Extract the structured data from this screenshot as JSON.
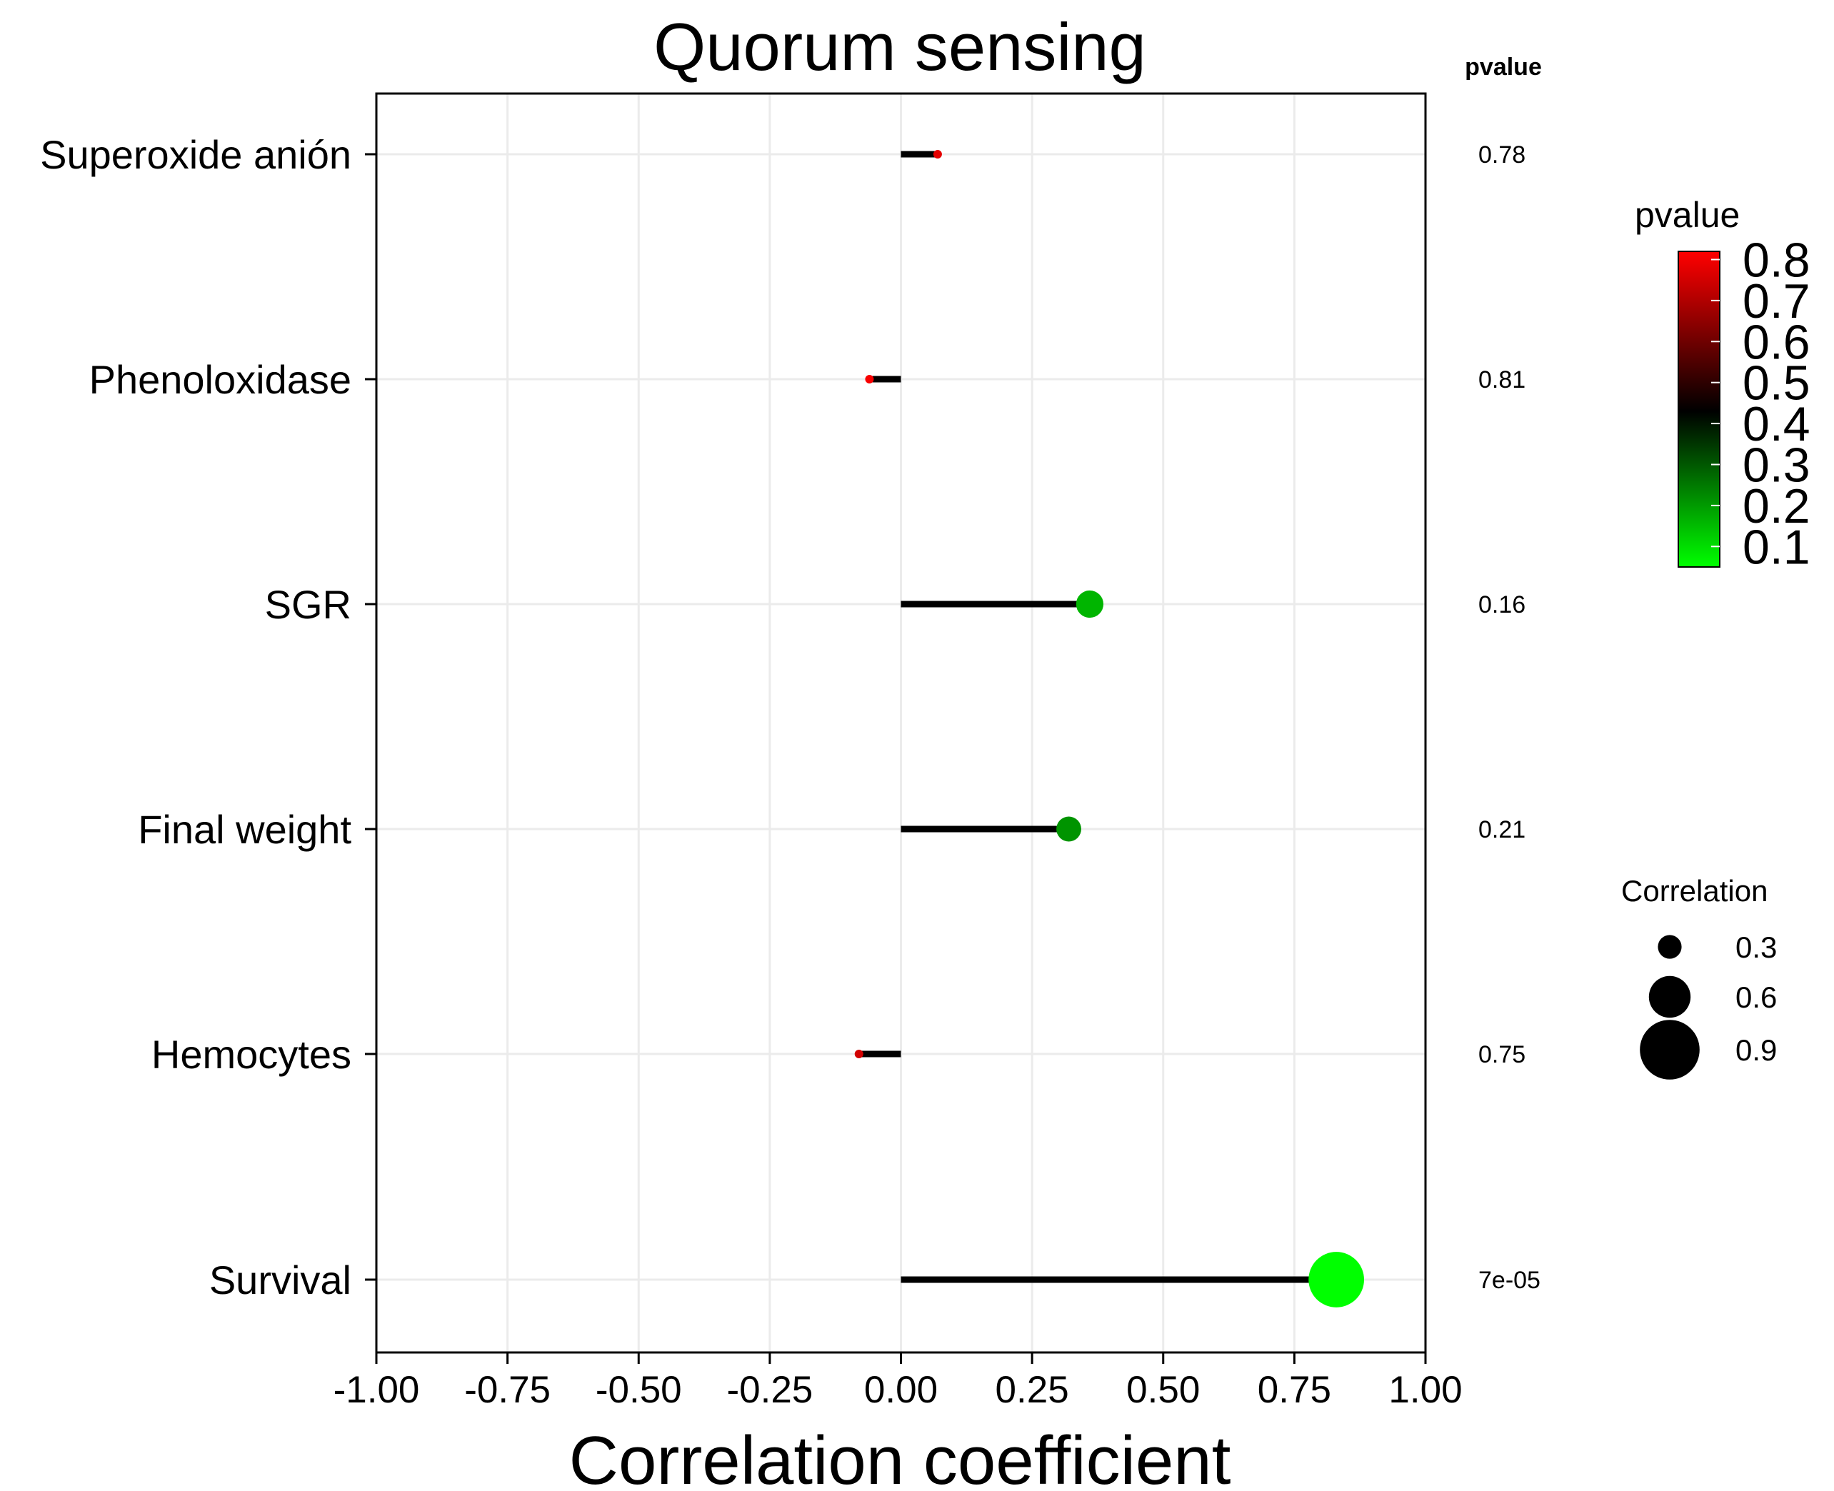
{
  "chart_data": {
    "type": "lollipop",
    "title": "Quorum sensing",
    "xlabel": "Correlation coefficient",
    "ylabel": "",
    "xlim": [
      -1.0,
      1.0
    ],
    "xticks": [
      -1.0,
      -0.75,
      -0.5,
      -0.25,
      0.0,
      0.25,
      0.5,
      0.75,
      1.0
    ],
    "xtick_labels": [
      "-1.00",
      "-0.75",
      "-0.50",
      "-0.25",
      "0.00",
      "0.25",
      "0.50",
      "0.75",
      "1.00"
    ],
    "grid": true,
    "pvalue_column_header": "pvalue",
    "categories": [
      "Superoxide anión",
      "Phenoloxidase",
      "SGR",
      "Final weight",
      "Hemocytes",
      "Survival"
    ],
    "values": [
      0.07,
      -0.06,
      0.36,
      0.32,
      -0.08,
      0.83
    ],
    "pvalues": [
      0.78,
      0.81,
      0.16,
      0.21,
      0.75,
      7e-05
    ],
    "pvalue_labels": [
      "0.78",
      "0.81",
      "0.16",
      "0.21",
      "0.75",
      "7e-05"
    ],
    "colors": {
      "low": "#00ff00",
      "mid": "#000000",
      "high": "#ff0000",
      "stem": "#000000",
      "grid": "#ebebeb",
      "axis": "#000000"
    },
    "color_legend": {
      "title": "pvalue",
      "range": [
        0.05,
        0.82
      ],
      "mid": 0.43,
      "ticks": [
        0.1,
        0.2,
        0.3,
        0.4,
        0.5,
        0.6,
        0.7,
        0.8
      ],
      "tick_labels": [
        "0.1",
        "0.2",
        "0.3",
        "0.4",
        "0.5",
        "0.6",
        "0.7",
        "0.8"
      ]
    },
    "size_legend": {
      "title": "Correlation",
      "values": [
        0.3,
        0.6,
        0.9
      ],
      "labels": [
        "0.3",
        "0.6",
        "0.9"
      ]
    }
  }
}
